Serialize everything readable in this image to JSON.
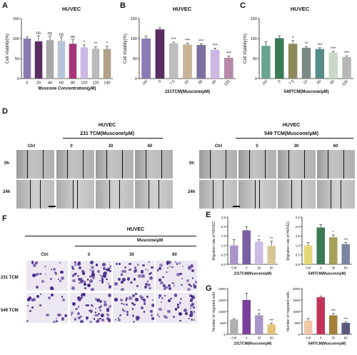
{
  "panels": {
    "A": {
      "letter": "A",
      "title": "HUVEC"
    },
    "B": {
      "letter": "B",
      "title": "HUVEC"
    },
    "C": {
      "letter": "C",
      "title": "HUVEC"
    },
    "D": {
      "letter": "D",
      "left_group": "HUVEC",
      "left_sub": "231 TCM(Muscone/μM)",
      "right_group": "HUVEC",
      "right_sub": "549 TCM(Muscone/μM)",
      "cols": [
        "Ctrl",
        "0",
        "30",
        "60"
      ],
      "rows": [
        "0h",
        "24h"
      ]
    },
    "E": {
      "letter": "E"
    },
    "F": {
      "letter": "F",
      "title": "HUVEC",
      "sub": "Muscone/μM",
      "cols": [
        "Ctrl",
        "0",
        "30",
        "60"
      ],
      "rows": [
        "231 TCM",
        "549 TCM"
      ]
    },
    "G": {
      "letter": "G"
    }
  },
  "chart_data": [
    {
      "id": "A",
      "type": "bar",
      "ylabel": "Cell Viability(%)",
      "xlabel": "Muscone Concentration(μM)",
      "categories": [
        "0",
        "20",
        "40",
        "60",
        "80",
        "100",
        "120",
        "140"
      ],
      "values": [
        100,
        93,
        96,
        94,
        87,
        78,
        75,
        74
      ],
      "errors": [
        4,
        14,
        10,
        10,
        10,
        6,
        5,
        7
      ],
      "sig": [
        "",
        "ns",
        "ns",
        "ns",
        "ns",
        "*",
        "**",
        "*"
      ],
      "colors": [
        "#8b7bb3",
        "#5a2d62",
        "#a8a8a8",
        "#b7c3d6",
        "#a6347a",
        "#cbb8e3",
        "#bababa",
        "#b3a089"
      ],
      "ylim": [
        0,
        150
      ],
      "yticks": [
        0,
        50,
        100,
        150
      ]
    },
    {
      "id": "B",
      "type": "bar",
      "ylabel": "Cell Viability(%)",
      "xlabel": "231TCM(Muscone/μM)",
      "categories": [
        "ctrl",
        "0",
        "7.5",
        "15",
        "30",
        "60",
        "120"
      ],
      "values": [
        100,
        123,
        88,
        85,
        84,
        72,
        52
      ],
      "errors": [
        6,
        4,
        3,
        3,
        3,
        4,
        4
      ],
      "sig": [
        "",
        "",
        "***",
        "***",
        "***",
        "***",
        "***"
      ],
      "colors": [
        "#8b7bb3",
        "#5a2d62",
        "#bebebe",
        "#c8b399",
        "#7d6f9f",
        "#ccb8e3",
        "#b58aa6"
      ],
      "ylim": [
        0,
        150
      ],
      "yticks": [
        0,
        50,
        100,
        150
      ]
    },
    {
      "id": "C",
      "type": "bar",
      "ylabel": "Cell Viability(%)",
      "xlabel": "549TCM(Muscone/μM)",
      "categories": [
        "ctrl",
        "0",
        "7.5",
        "15",
        "30",
        "60",
        "120"
      ],
      "values": [
        82,
        101,
        87,
        77,
        74,
        65,
        54
      ],
      "errors": [
        10,
        6,
        8,
        3,
        3,
        3,
        3
      ],
      "sig": [
        "",
        "",
        "*",
        "**",
        "***",
        "***",
        "***"
      ],
      "colors": [
        "#6aa58e",
        "#3a7a55",
        "#8c8a5c",
        "#7a8a82",
        "#558c88",
        "#c9d8c9",
        "#b7b7b7"
      ],
      "ylim": [
        0,
        150
      ],
      "yticks": [
        0,
        50,
        100,
        150
      ]
    },
    {
      "id": "E1",
      "type": "bar",
      "ylabel": "Migration rate of HUVEC",
      "xlabel": "231TCM(Muscone/μM)",
      "categories": [
        "Ctrl",
        "0",
        "30",
        "60"
      ],
      "values": [
        1.0,
        1.8,
        1.2,
        0.97
      ],
      "errors": [
        0.3,
        0.2,
        0.1,
        0.25
      ],
      "sig": [
        "",
        "",
        "*",
        "**"
      ],
      "colors": [
        "#a795c9",
        "#7a5fa5",
        "#cbbce3",
        "#d9c696"
      ],
      "ylim": [
        0,
        2.5
      ],
      "yticks": [
        0.0,
        0.5,
        1.0,
        1.5,
        2.0,
        2.5
      ]
    },
    {
      "id": "E2",
      "type": "bar",
      "ylabel": "Migration rate of HUVEC",
      "xlabel": "549TCM(Muscone/μM)",
      "categories": [
        "Ctrl",
        "0",
        "30",
        "60"
      ],
      "values": [
        1.0,
        1.95,
        1.43,
        1.07
      ],
      "errors": [
        0.15,
        0.15,
        0.12,
        0.08
      ],
      "sig": [
        "",
        "",
        "*",
        "***"
      ],
      "colors": [
        "#e5d67a",
        "#3a7a55",
        "#a5a05a",
        "#7a85a5"
      ],
      "ylim": [
        0,
        2.5
      ],
      "yticks": [
        0.0,
        0.5,
        1.0,
        1.5,
        2.0,
        2.5
      ]
    },
    {
      "id": "G1",
      "type": "bar",
      "ylabel": "Number of migrated cells",
      "xlabel": "231TCM(Muscone/μM)",
      "categories": [
        "Ctrl",
        "0",
        "30",
        "60"
      ],
      "values": [
        640,
        1500,
        830,
        430
      ],
      "errors": [
        30,
        300,
        80,
        50
      ],
      "sig": [
        "",
        "",
        "**",
        "***"
      ],
      "colors": [
        "#b0b0b0",
        "#7a3f9a",
        "#a795c9",
        "#e1c47a"
      ],
      "ylim": [
        0,
        2000
      ],
      "yticks": [
        0,
        500,
        1000,
        1500,
        2000
      ]
    },
    {
      "id": "G2",
      "type": "bar",
      "ylabel": "Number of migrated cells",
      "xlabel": "549TCM(Muscone/μM)",
      "categories": [
        "Ctrl",
        "0",
        "30",
        "60"
      ],
      "values": [
        600,
        1620,
        830,
        500
      ],
      "errors": [
        90,
        50,
        80,
        40
      ],
      "sig": [
        "",
        "",
        "***",
        "***"
      ],
      "colors": [
        "#f0c8a8",
        "#c1335a",
        "#a5803a",
        "#5a5a7a"
      ],
      "ylim": [
        0,
        2000
      ],
      "yticks": [
        0,
        500,
        1000,
        1500,
        2000
      ]
    }
  ]
}
